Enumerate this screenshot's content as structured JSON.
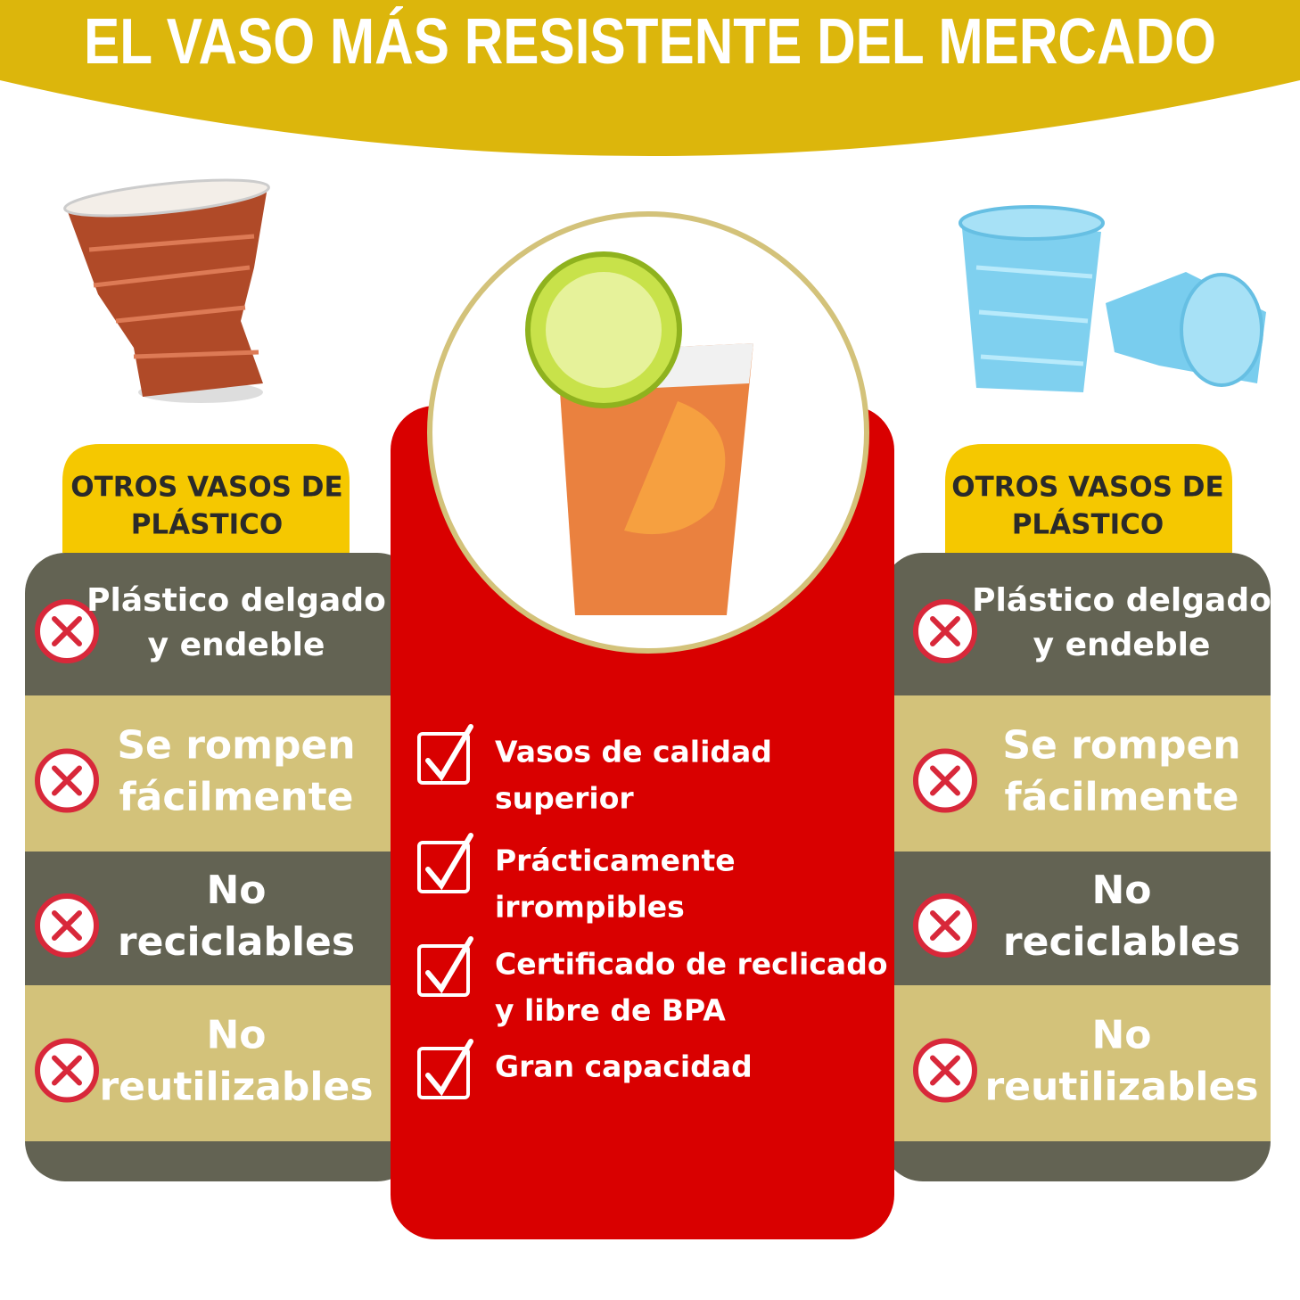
{
  "title": "EL VASO MÁS RESISTENTE DEL MERCADO",
  "left": {
    "header": [
      "OTROS VASOS DE",
      "PLÁSTICO"
    ],
    "items": [
      [
        "Plástico delgado",
        "y endeble"
      ],
      [
        "Se rompen",
        "fácilmente"
      ],
      [
        "No",
        "reciclables"
      ],
      [
        "No",
        "reutilizables"
      ]
    ]
  },
  "center": {
    "items": [
      [
        "Vasos de calidad",
        "superior"
      ],
      [
        "Prácticamente",
        "irrompibles"
      ],
      [
        "Certificado de reclicado",
        "y libre de BPA"
      ],
      [
        "Gran capacidad"
      ]
    ]
  },
  "right": {
    "header": [
      "OTROS VASOS DE",
      "PLÁSTICO"
    ],
    "items": [
      [
        "Plástico delgado",
        "y endeble"
      ],
      [
        "Se rompen",
        "fácilmente"
      ],
      [
        "No",
        "reciclables"
      ],
      [
        "No",
        "reutilizables"
      ]
    ]
  }
}
